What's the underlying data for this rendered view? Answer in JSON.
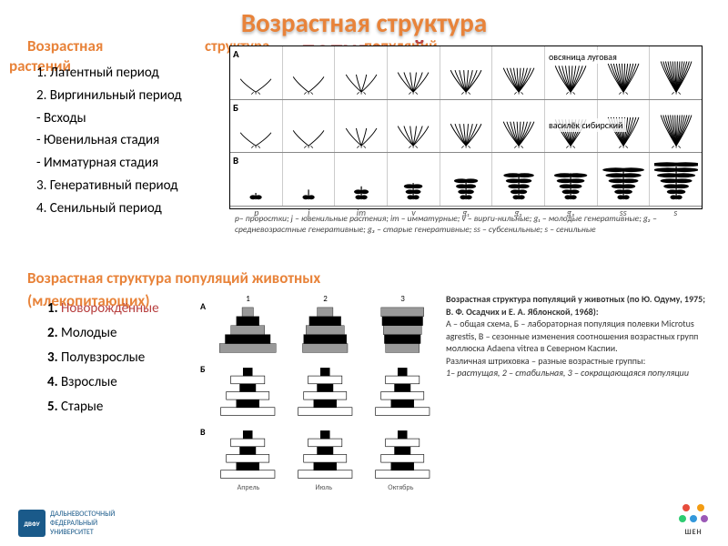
{
  "title": {
    "line1": "Возрастная структура",
    "line2_overlap": "популяций"
  },
  "plants_heading": {
    "w1": "Возрастная",
    "w2": "структура",
    "w3": "популяций",
    "w4": "растений"
  },
  "plant_periods": [
    "1. Латентный период",
    "2. Виргинильный период",
    "- Всходы",
    "- Ювенильная стадия",
    "- Имматурная стадия",
    "3. Генеративный период",
    "4. Сенильный период"
  ],
  "plant_table": {
    "row_labels": [
      "А",
      "Б",
      "В"
    ],
    "col_labels": [
      "p",
      "j",
      "im",
      "v",
      "g₁",
      "g₂",
      "g₃",
      "ss",
      "s"
    ],
    "caption_a": "овсяница луговая",
    "caption_v": "василёк сибирский"
  },
  "plant_legend": "p– проростки; j – ювенильные растения; im – имматурные; v – вирги-нильные; g₁ – молодые генеративные; g₂ – средневозрастные генеративные; g₃ – старые генеративные; ss – субсенильные; s – сенильные",
  "animals_heading": {
    "line1": "Возрастная структура популяций животных",
    "line2": "(млекопитающих)"
  },
  "animal_stages": [
    {
      "n": "1.",
      "t": "Новорождённые",
      "crossed": true
    },
    {
      "n": "2.",
      "t": "Молодые",
      "crossed": false
    },
    {
      "n": "3.",
      "t": "Полувзрослые",
      "crossed": false
    },
    {
      "n": "4.",
      "t": "Взрослые",
      "crossed": false
    },
    {
      "n": "5.",
      "t": "Старые",
      "crossed": false
    }
  ],
  "pyramids": {
    "row_labels": [
      "А",
      "Б",
      "В"
    ],
    "col_top_labels": [
      "1",
      "2",
      "3"
    ],
    "month_labels": [
      "Апрель",
      "Июль",
      "Октябрь"
    ],
    "shapes": [
      [
        "triangle",
        "triangle",
        "triangle"
      ],
      [
        "pagoda",
        "pagoda",
        "pagoda"
      ],
      [
        "pagoda",
        "pagoda",
        "pagoda"
      ]
    ]
  },
  "animals_caption": {
    "bold": "Возрастная структура популяций у животных (по Ю. Одуму, 1975; В. Ф. Осадчих и Е. А. Яблонской, 1968):",
    "body": "А – общая схема, Б – лабораторная популяция полевки Microtus agrestis, В – сезонные изменения соотношения возрастных групп моллюска Adaena vitrea в Северном Каспии.\nРазличная штриховка – разные возрастные группы:",
    "italic": "1– растущая, 2 – стабильная, 3 – сокращающаяся популяции"
  },
  "logos": {
    "left_text": "ДВФУ",
    "left_sub": "ДАЛЬНЕВОСТОЧНЫЙ\nФЕДЕРАЛЬНЫЙ\nУНИВЕРСИТЕТ",
    "right_text": "ШЕН",
    "colors": [
      "#e74c3c",
      "#f39c12",
      "#2ecc71",
      "#3498db",
      "#9b59b6"
    ]
  }
}
